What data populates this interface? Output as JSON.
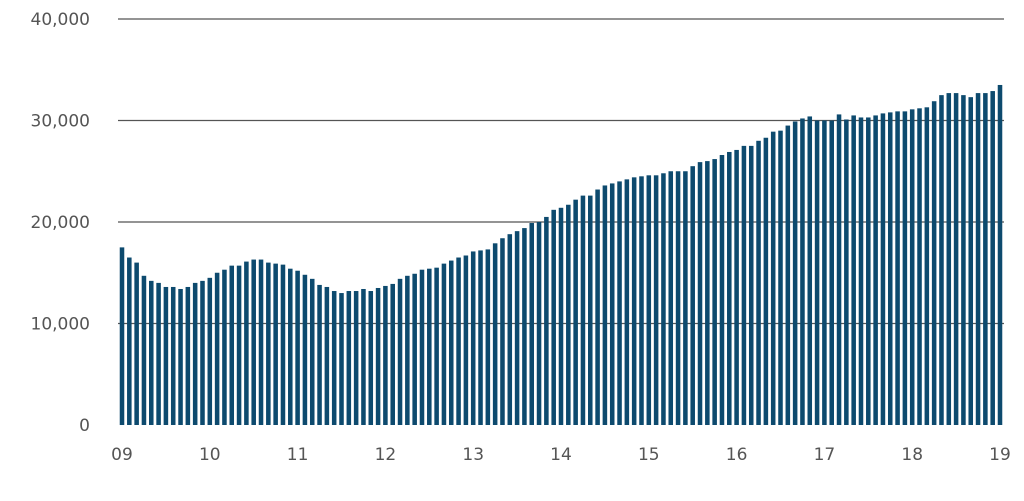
{
  "chart_data": {
    "type": "bar",
    "title": "",
    "xlabel": "",
    "ylabel": "",
    "ylim": [
      0,
      40000
    ],
    "yticks": [
      0,
      10000,
      20000,
      30000,
      40000
    ],
    "ytick_labels": [
      "0",
      "10,000",
      "20,000",
      "30,000",
      "40,000"
    ],
    "xtick_labels": [
      "09",
      "10",
      "11",
      "12",
      "13",
      "14",
      "15",
      "16",
      "17",
      "18",
      "19"
    ],
    "grid": true,
    "legend": "none",
    "bar_color": "#0d4a6e",
    "grid_color": "#555555",
    "series": [
      {
        "values": [
          17500,
          16500,
          16000,
          14700,
          14200,
          14000,
          13600,
          13600,
          13400,
          13600,
          14000,
          14200,
          14500,
          15000,
          15300,
          15700,
          15700,
          16100,
          16300,
          16300,
          16000,
          15900,
          15800,
          15400,
          15200,
          14800,
          14400,
          13800,
          13600,
          13200,
          13000,
          13200,
          13200,
          13400,
          13200,
          13500,
          13700,
          13900,
          14400,
          14700,
          14900,
          15300,
          15400,
          15500,
          15900,
          16200,
          16500,
          16700,
          17100,
          17200,
          17300,
          17900,
          18400,
          18800,
          19100,
          19400,
          19900,
          20000,
          20500,
          21200,
          21400,
          21700,
          22200,
          22600,
          22600,
          23200,
          23600,
          23800,
          24000,
          24200,
          24400,
          24500,
          24600,
          24600,
          24800,
          25000,
          25000,
          25000,
          25500,
          25900,
          26000,
          26200,
          26600,
          26900,
          27100,
          27500,
          27500,
          28000,
          28300,
          28900,
          29000,
          29500,
          29900,
          30200,
          30400,
          30000,
          30000,
          30000,
          30600,
          30100,
          30500,
          30300,
          30300,
          30500,
          30700,
          30800,
          30900,
          30900,
          31100,
          31200,
          31300,
          31900,
          32500,
          32700,
          32700,
          32500,
          32300,
          32700,
          32700,
          32900,
          33500
        ]
      }
    ]
  }
}
